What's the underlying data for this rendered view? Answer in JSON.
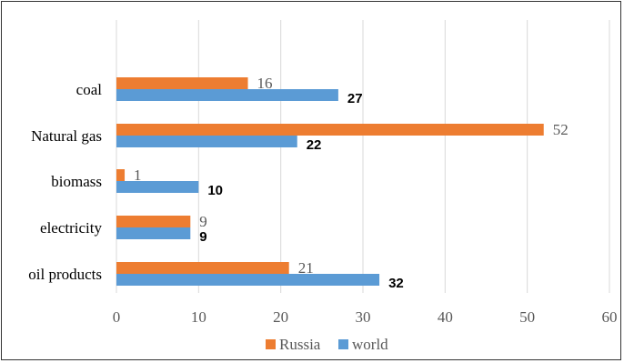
{
  "chart_data": {
    "type": "bar",
    "orientation": "horizontal",
    "categories": [
      "coal",
      "Natural gas",
      "biomass",
      "electricity",
      "oil products"
    ],
    "series": [
      {
        "name": "Russia",
        "values": [
          16,
          52,
          1,
          9,
          21
        ],
        "color": "#ED7D31"
      },
      {
        "name": "world",
        "values": [
          27,
          22,
          10,
          9,
          32
        ],
        "color": "#5B9BD5"
      }
    ],
    "xlim": [
      0,
      60
    ],
    "xticks": [
      "0",
      "10",
      "20",
      "30",
      "40",
      "50",
      "60"
    ],
    "grid": "vertical",
    "legend_position": "bottom",
    "gridline_color": "#D9D9D9"
  }
}
